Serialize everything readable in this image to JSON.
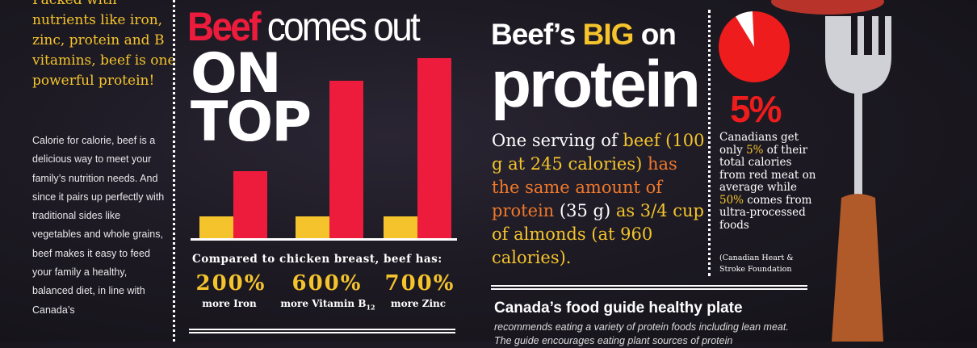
{
  "left_column": {
    "lead": "Packed with nutrients like iron, zinc, protein and B vitamins, beef is one powerful protein!",
    "body": "Calorie for calorie, beef is a delicious way to meet your family’s nutrition needs. And since it pairs up perfectly with traditional sides like vegetables and whole grains, beef makes it easy to feed your family a healthy, balanced diet, in line with Canada’s"
  },
  "on_top": {
    "title_highlight": "Beef",
    "title_rest": "comes out",
    "title_big_1": "ON",
    "title_big_2": "TOP",
    "compared": "Compared to chicken breast, beef has:",
    "stats": [
      {
        "value": "200%",
        "label": "more Iron",
        "sub": ""
      },
      {
        "value": "600%",
        "label": "more Vitamin B",
        "sub": "12"
      },
      {
        "value": "700%",
        "label": "more Zinc",
        "sub": ""
      }
    ]
  },
  "chart_data": {
    "type": "bar",
    "categories": [
      "Iron",
      "Vitamin B12",
      "Zinc"
    ],
    "series": [
      {
        "values": [
          1,
          1,
          1
        ]
      },
      {
        "values": [
          3,
          7,
          8
        ]
      }
    ],
    "colors": [
      "#f5c42c",
      "#ee1c3c"
    ]
  },
  "protein": {
    "title_1": "Beef’s",
    "title_big": "BIG",
    "title_2": "on",
    "title_3": "protein",
    "s1": "One serving of ",
    "s2": "beef (100 g at 245 calories) ",
    "s3": "has the same amount of protein ",
    "s4": "(35 g) ",
    "s5": "as 3/4 cup of almonds (at 960 calories)."
  },
  "red_meat": {
    "pie_fraction": 0.05,
    "big_pct": "5%",
    "t1": "Canadians get only ",
    "t2": "5%",
    "t3": " of their total calories from red meat on average while ",
    "t4": "50%",
    "t5": " comes from ultra-processed foods",
    "source": "(Canadian Heart & Stroke Foundation"
  },
  "food_guide": {
    "title": "Canada’s food guide healthy plate",
    "body": "recommends eating a variety of protein foods including lean meat. The guide encourages eating plant sources of protein"
  },
  "colors": {
    "yellow": "#f5c42c",
    "red": "#ee1c3c",
    "orange": "#f0782a"
  }
}
